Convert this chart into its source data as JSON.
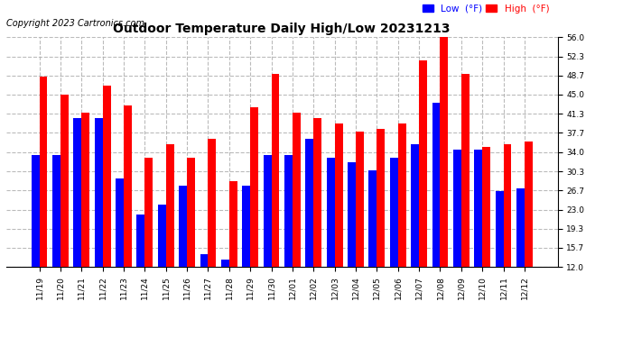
{
  "title": "Outdoor Temperature Daily High/Low 20231213",
  "copyright": "Copyright 2023 Cartronics.com",
  "legend_low": "Low  (°F)",
  "legend_high": "High  (°F)",
  "categories": [
    "11/19",
    "11/20",
    "11/21",
    "11/22",
    "11/23",
    "11/24",
    "11/25",
    "11/26",
    "11/27",
    "11/28",
    "11/29",
    "11/30",
    "12/01",
    "12/02",
    "12/03",
    "12/04",
    "12/05",
    "12/06",
    "12/07",
    "12/08",
    "12/09",
    "12/10",
    "12/11",
    "12/12"
  ],
  "high": [
    48.5,
    45.0,
    41.5,
    46.8,
    43.0,
    33.0,
    35.5,
    33.0,
    36.5,
    28.5,
    42.5,
    49.0,
    41.5,
    40.5,
    39.5,
    38.0,
    38.5,
    39.5,
    51.5,
    56.0,
    49.0,
    35.0,
    35.5,
    36.0
  ],
  "low": [
    33.5,
    33.5,
    40.5,
    40.5,
    29.0,
    22.0,
    24.0,
    27.5,
    14.5,
    13.5,
    27.5,
    33.5,
    33.5,
    36.5,
    33.0,
    32.0,
    30.5,
    33.0,
    35.5,
    43.5,
    34.5,
    34.5,
    26.5,
    27.0
  ],
  "ylim": [
    12.0,
    56.0
  ],
  "yticks": [
    12.0,
    15.7,
    19.3,
    23.0,
    26.7,
    30.3,
    34.0,
    37.7,
    41.3,
    45.0,
    48.7,
    52.3,
    56.0
  ],
  "bar_width": 0.38,
  "high_color": "#ff0000",
  "low_color": "#0000ff",
  "bg_color": "#ffffff",
  "title_fontsize": 10,
  "copyright_fontsize": 7,
  "tick_fontsize": 6.5,
  "grid_color": "#aaaaaa",
  "grid_style": "--",
  "grid_alpha": 0.8
}
